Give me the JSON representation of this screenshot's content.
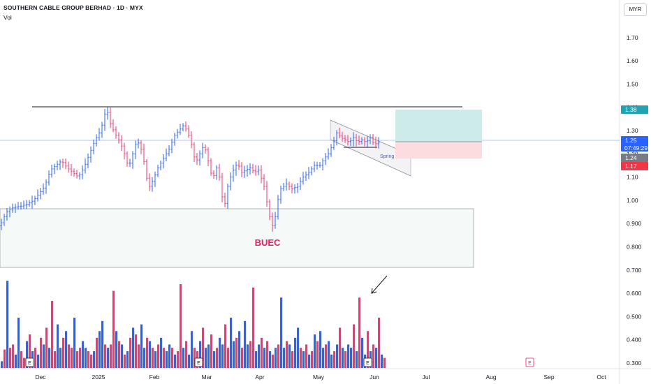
{
  "header": {
    "title": "SOUTHERN CABLE GROUP BERHAD · 1D · MYX",
    "volume_label": "Vol"
  },
  "currency_button": "MYR",
  "colors": {
    "up": "#2962ff",
    "down": "#f23673",
    "buec_text": "#e91e63",
    "target_zone": "#b2dfdb",
    "stop_zone": "#ffcdd2",
    "last_price_tag": "#2962ff",
    "target_tag": "#22a3b3",
    "stop_tag": "#f23645",
    "gray_tag": "#787b86"
  },
  "price_axis": {
    "ticks": [
      "1.70",
      "1.60",
      "1.50",
      "1.40",
      "1.30",
      "1.20",
      "1.10",
      "1.00",
      "0.900",
      "0.800",
      "0.700",
      "0.600",
      "0.500",
      "0.400",
      "0.300"
    ],
    "tags": [
      {
        "label": "1.38",
        "kind": "target"
      },
      {
        "label": "1.25",
        "sub": "07:49:29",
        "kind": "last"
      },
      {
        "label": "1.24",
        "kind": "gray"
      },
      {
        "label": "1.17",
        "kind": "stop"
      }
    ]
  },
  "time_axis": {
    "labels": [
      "Dec",
      "2025",
      "Feb",
      "Mar",
      "Apr",
      "May",
      "Jun",
      "Jul",
      "Aug",
      "Sep",
      "Oct"
    ]
  },
  "annotations": {
    "buec": "BUEC",
    "spring": "Spring",
    "earnings_marker": "E"
  },
  "chart_data": {
    "type": "bar",
    "title": "SOUTHERN CABLE GROUP BERHAD · 1D · MYX",
    "note_series": "OHLC price bars with volume histogram",
    "ylim": [
      0.27,
      1.8
    ],
    "resistance_level": 1.395,
    "last_price": 1.25,
    "entry": 1.24,
    "target": 1.38,
    "stop": 1.17,
    "buec_zone": [
      0.7,
      0.955
    ],
    "price_path": [
      [
        0,
        0.89
      ],
      [
        6,
        0.93
      ],
      [
        12,
        0.96
      ],
      [
        20,
        0.97
      ],
      [
        30,
        0.975
      ],
      [
        40,
        0.985
      ],
      [
        48,
        1.0
      ],
      [
        56,
        1.03
      ],
      [
        64,
        1.06
      ],
      [
        72,
        1.13
      ],
      [
        80,
        1.15
      ],
      [
        88,
        1.17
      ],
      [
        96,
        1.14
      ],
      [
        104,
        1.12
      ],
      [
        112,
        1.1
      ],
      [
        120,
        1.14
      ],
      [
        128,
        1.2
      ],
      [
        136,
        1.26
      ],
      [
        144,
        1.3
      ],
      [
        150,
        1.37
      ],
      [
        153,
        1.39
      ],
      [
        158,
        1.33
      ],
      [
        164,
        1.29
      ],
      [
        172,
        1.25
      ],
      [
        178,
        1.2
      ],
      [
        184,
        1.14
      ],
      [
        190,
        1.2
      ],
      [
        196,
        1.26
      ],
      [
        202,
        1.22
      ],
      [
        208,
        1.14
      ],
      [
        212,
        1.05
      ],
      [
        218,
        1.08
      ],
      [
        226,
        1.14
      ],
      [
        234,
        1.18
      ],
      [
        242,
        1.22
      ],
      [
        250,
        1.28
      ],
      [
        256,
        1.3
      ],
      [
        262,
        1.32
      ],
      [
        268,
        1.3
      ],
      [
        274,
        1.24
      ],
      [
        280,
        1.16
      ],
      [
        286,
        1.2
      ],
      [
        292,
        1.24
      ],
      [
        298,
        1.17
      ],
      [
        304,
        1.09
      ],
      [
        310,
        1.14
      ],
      [
        316,
        1.08
      ],
      [
        320,
        0.95
      ],
      [
        326,
        1.06
      ],
      [
        332,
        1.12
      ],
      [
        340,
        1.16
      ],
      [
        346,
        1.12
      ],
      [
        352,
        1.13
      ],
      [
        358,
        1.14
      ],
      [
        364,
        1.12
      ],
      [
        370,
        1.13
      ],
      [
        378,
        1.06
      ],
      [
        384,
        0.96
      ],
      [
        388,
        0.9
      ],
      [
        392,
        0.88
      ],
      [
        396,
        0.98
      ],
      [
        402,
        1.05
      ],
      [
        410,
        1.07
      ],
      [
        418,
        1.05
      ],
      [
        426,
        1.06
      ],
      [
        434,
        1.1
      ],
      [
        442,
        1.12
      ],
      [
        450,
        1.15
      ],
      [
        458,
        1.15
      ],
      [
        464,
        1.18
      ],
      [
        470,
        1.2
      ],
      [
        476,
        1.24
      ],
      [
        482,
        1.29
      ],
      [
        488,
        1.27
      ],
      [
        494,
        1.26
      ],
      [
        500,
        1.25
      ],
      [
        506,
        1.27
      ],
      [
        512,
        1.25
      ],
      [
        518,
        1.26
      ],
      [
        524,
        1.25
      ],
      [
        530,
        1.27
      ],
      [
        536,
        1.24
      ],
      [
        542,
        1.25
      ]
    ],
    "volume_ylim": [
      0,
      2.7
    ],
    "volume_bars": [
      [
        0.2,
        0
      ],
      [
        0.55,
        1
      ],
      [
        2.0,
        0
      ],
      [
        0.6,
        1
      ],
      [
        0.7,
        1
      ],
      [
        0.4,
        0
      ],
      [
        1.5,
        0
      ],
      [
        0.5,
        1
      ],
      [
        0.3,
        1
      ],
      [
        0.8,
        0
      ],
      [
        1.0,
        1
      ],
      [
        0.5,
        0
      ],
      [
        0.6,
        1
      ],
      [
        0.4,
        0
      ],
      [
        0.9,
        1
      ],
      [
        0.7,
        0
      ],
      [
        1.2,
        1
      ],
      [
        0.6,
        0
      ],
      [
        0.7,
        1
      ],
      [
        0.5,
        1
      ],
      [
        1.3,
        0
      ],
      [
        0.6,
        0
      ],
      [
        0.9,
        1
      ],
      [
        1.1,
        0
      ],
      [
        0.7,
        1
      ],
      [
        0.6,
        1
      ],
      [
        1.5,
        0
      ],
      [
        0.5,
        1
      ],
      [
        0.6,
        1
      ],
      [
        0.8,
        0
      ],
      [
        0.6,
        0
      ],
      [
        0.5,
        1
      ],
      [
        0.4,
        1
      ],
      [
        0.5,
        0
      ],
      [
        0.9,
        1
      ],
      [
        1.1,
        0
      ],
      [
        1.4,
        0
      ],
      [
        0.7,
        1
      ],
      [
        0.6,
        0
      ],
      [
        0.7,
        1
      ],
      [
        0.5,
        1
      ],
      [
        1.1,
        0
      ],
      [
        0.8,
        1
      ],
      [
        0.7,
        0
      ],
      [
        0.4,
        1
      ],
      [
        0.5,
        0
      ],
      [
        0.9,
        1
      ],
      [
        1.2,
        0
      ],
      [
        1.0,
        1
      ],
      [
        0.7,
        1
      ],
      [
        1.3,
        0
      ],
      [
        0.6,
        0
      ],
      [
        0.9,
        1
      ],
      [
        0.8,
        0
      ],
      [
        0.6,
        1
      ],
      [
        0.5,
        0
      ],
      [
        0.7,
        1
      ],
      [
        0.9,
        0
      ],
      [
        0.6,
        1
      ],
      [
        0.5,
        0
      ],
      [
        0.7,
        0
      ],
      [
        0.6,
        1
      ],
      [
        0.4,
        0
      ],
      [
        0.5,
        1
      ],
      [
        0.3,
        1
      ],
      [
        0.6,
        0
      ],
      [
        0.8,
        1
      ],
      [
        0.4,
        0
      ],
      [
        1.1,
        0
      ],
      [
        0.6,
        1
      ],
      [
        0.5,
        1
      ],
      [
        0.8,
        0
      ],
      [
        1.2,
        1
      ],
      [
        0.6,
        0
      ],
      [
        0.7,
        0
      ],
      [
        1.0,
        1
      ],
      [
        0.5,
        0
      ],
      [
        0.6,
        1
      ],
      [
        0.9,
        0
      ],
      [
        0.7,
        0
      ],
      [
        1.3,
        1
      ],
      [
        0.6,
        1
      ],
      [
        1.5,
        0
      ],
      [
        0.8,
        0
      ],
      [
        0.9,
        1
      ],
      [
        1.1,
        0
      ],
      [
        0.6,
        1
      ],
      [
        1.4,
        0
      ],
      [
        0.7,
        0
      ],
      [
        0.8,
        1
      ],
      [
        0.6,
        1
      ],
      [
        0.5,
        0
      ],
      [
        0.7,
        0
      ],
      [
        0.9,
        1
      ],
      [
        0.6,
        0
      ],
      [
        0.8,
        1
      ],
      [
        0.5,
        0
      ],
      [
        0.4,
        1
      ],
      [
        0.6,
        0
      ],
      [
        0.7,
        1
      ],
      [
        1.1,
        0
      ],
      [
        0.6,
        0
      ],
      [
        0.8,
        1
      ],
      [
        0.7,
        0
      ],
      [
        0.5,
        1
      ],
      [
        0.9,
        0
      ],
      [
        1.2,
        0
      ],
      [
        0.6,
        1
      ],
      [
        0.5,
        0
      ],
      [
        0.7,
        1
      ],
      [
        0.4,
        0
      ],
      [
        0.5,
        1
      ],
      [
        1.0,
        0
      ],
      [
        0.8,
        1
      ],
      [
        1.1,
        0
      ],
      [
        0.6,
        0
      ],
      [
        0.7,
        1
      ],
      [
        0.8,
        0
      ],
      [
        0.4,
        0
      ],
      [
        0.5,
        1
      ],
      [
        0.7,
        0
      ],
      [
        1.2,
        1
      ],
      [
        0.6,
        0
      ],
      [
        0.5,
        1
      ],
      [
        0.7,
        0
      ],
      [
        0.6,
        0
      ],
      [
        1.3,
        1
      ],
      [
        0.5,
        0
      ],
      [
        0.6,
        1
      ],
      [
        0.9,
        0
      ],
      [
        0.4,
        0
      ],
      [
        1.1,
        1
      ],
      [
        0.5,
        0
      ],
      [
        0.7,
        1
      ],
      [
        0.6,
        0
      ],
      [
        1.5,
        1
      ],
      [
        0.4,
        0
      ],
      [
        0.3,
        1
      ]
    ],
    "volume_highlights": [
      {
        "index": 2,
        "value": 2.6
      },
      {
        "index": 18,
        "value": 2.0
      },
      {
        "index": 40,
        "value": 2.3
      },
      {
        "index": 64,
        "value": 2.5
      },
      {
        "index": 90,
        "value": 2.4
      },
      {
        "index": 100,
        "value": 2.1
      },
      {
        "index": 128,
        "value": 2.1
      }
    ]
  }
}
